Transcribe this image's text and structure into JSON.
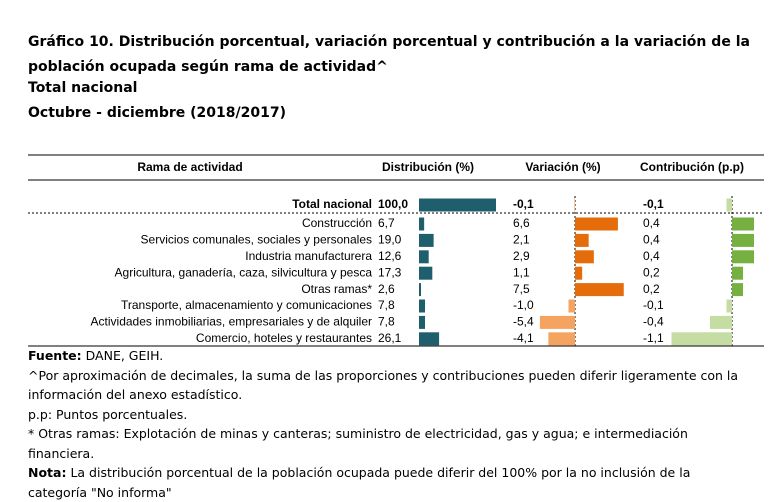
{
  "chart_data": {
    "type": "bar",
    "title": "Gráfico 10. Distribución porcentual, variación porcentual y contribución a la variación de la población ocupada según rama de actividad^",
    "subtitle": [
      "Total nacional",
      "Octubre - diciembre (2018/2017)"
    ],
    "category_header": "Rama de actividad",
    "categories": [
      "Total nacional",
      "Construcción",
      "Servicios comunales, sociales y personales",
      "Industria manufacturera",
      "Agricultura, ganadería, caza, silvicultura y pesca",
      "Otras ramas*",
      "Transporte, almacenamiento y comunicaciones",
      "Actividades inmobiliarias, empresariales y de alquiler",
      "Comercio, hoteles y restaurantes"
    ],
    "series": [
      {
        "name": "Distribución (%)",
        "color": "#1f5f6d",
        "negative_color": "#1f5f6d",
        "values": [
          100.0,
          6.7,
          19.0,
          12.6,
          17.3,
          2.6,
          7.8,
          7.8,
          26.1
        ],
        "value_labels": [
          "100,0",
          "6,7",
          "19,0",
          "12,6",
          "17,3",
          "2,6",
          "7,8",
          "7,8",
          "26,1"
        ]
      },
      {
        "name": "Variación (%)",
        "color": "#e46c0a",
        "negative_color": "#f4a460",
        "values": [
          -0.1,
          6.6,
          2.1,
          2.9,
          1.1,
          7.5,
          -1.0,
          -5.4,
          -4.1
        ],
        "value_labels": [
          "-0,1",
          "6,6",
          "2,1",
          "2,9",
          "1,1",
          "7,5",
          "-1,0",
          "-5,4",
          "-4,1"
        ]
      },
      {
        "name": "Contribución (p.p)",
        "color": "#76b041",
        "negative_color": "#c5dca2",
        "values": [
          -0.1,
          0.4,
          0.4,
          0.4,
          0.2,
          0.2,
          -0.1,
          -0.4,
          -1.1
        ],
        "value_labels": [
          "-0,1",
          "0,4",
          "0,4",
          "0,4",
          "0,2",
          "0,2",
          "-0,1",
          "-0,4",
          "-1,1"
        ]
      }
    ],
    "notes": [
      {
        "label": "Fuente:",
        "text": "DANE, GEIH."
      },
      {
        "text": "^Por aproximación de decimales, la suma de las proporciones y contribuciones pueden diferir ligeramente con la información del anexo estadístico."
      },
      {
        "text": "p.p: Puntos porcentuales."
      },
      {
        "text": "* Otras ramas: Explotación de minas y canteras; suministro de electricidad, gas y agua; e intermediación financiera."
      },
      {
        "label": "Nota:",
        "text": "La distribución porcentual de la población ocupada puede diferir del 100% por la no inclusión de la categoría \"No informa\""
      }
    ]
  }
}
